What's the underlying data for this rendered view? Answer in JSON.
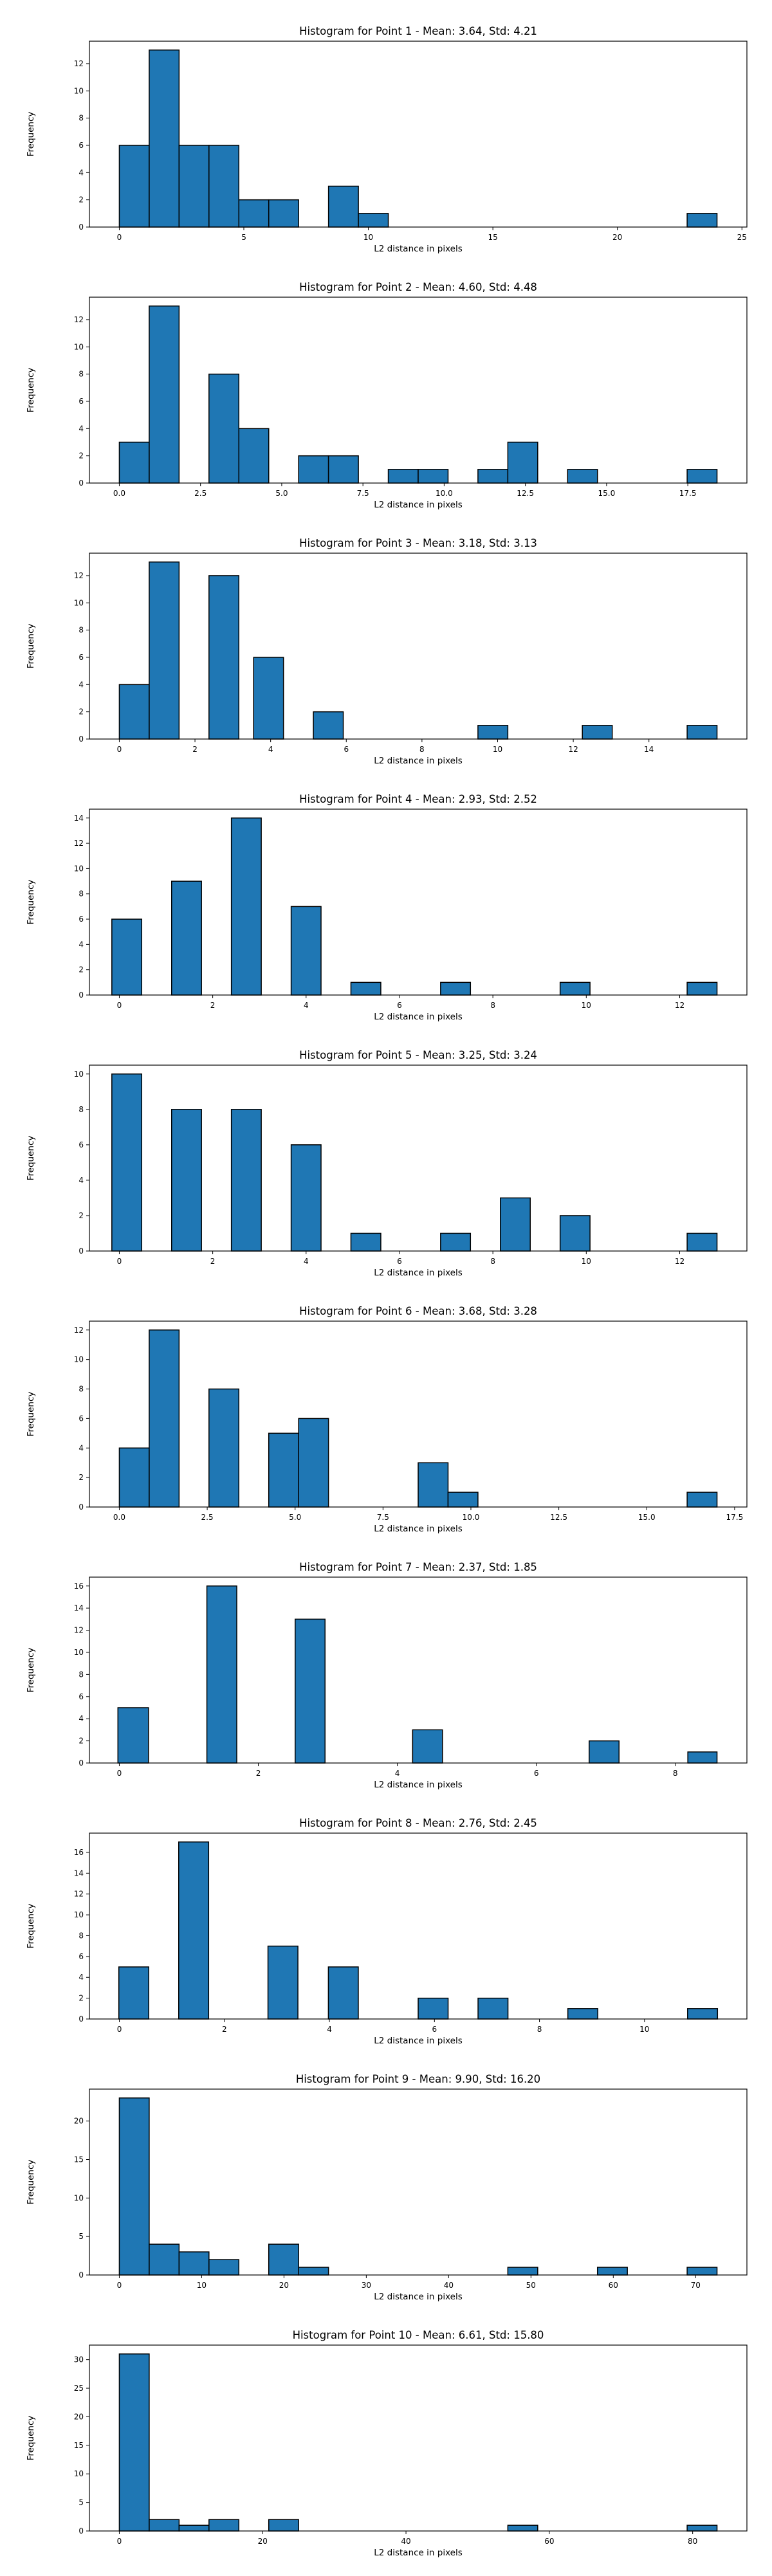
{
  "chart_data": [
    {
      "type": "bar",
      "title": "Histogram for Point 1 - Mean: 3.64, Std: 4.21",
      "xlabel": "L2 distance in pixels",
      "ylabel": "Frequency",
      "xlim": [
        -1.2,
        25.2
      ],
      "ylim": [
        0,
        13.65
      ],
      "xticks": [
        0,
        5,
        10,
        15,
        20,
        25
      ],
      "xtick_labels": [
        "0",
        "5",
        "10",
        "15",
        "20",
        "25"
      ],
      "yticks": [
        0,
        2,
        4,
        6,
        8,
        10,
        12
      ],
      "ytick_labels": [
        "0",
        "2",
        "4",
        "6",
        "8",
        "10",
        "12"
      ],
      "bars": [
        {
          "x0": 0.0,
          "x1": 1.2,
          "value": 6
        },
        {
          "x0": 1.2,
          "x1": 2.4,
          "value": 13
        },
        {
          "x0": 2.4,
          "x1": 3.6,
          "value": 6
        },
        {
          "x0": 3.6,
          "x1": 4.8,
          "value": 6
        },
        {
          "x0": 4.8,
          "x1": 6.0,
          "value": 2
        },
        {
          "x0": 6.0,
          "x1": 7.2,
          "value": 2
        },
        {
          "x0": 8.4,
          "x1": 9.6,
          "value": 3
        },
        {
          "x0": 9.6,
          "x1": 10.8,
          "value": 1
        },
        {
          "x0": 22.8,
          "x1": 24.0,
          "value": 1
        }
      ]
    },
    {
      "type": "bar",
      "title": "Histogram for Point 2 - Mean: 4.60, Std: 4.48",
      "xlabel": "L2 distance in pixels",
      "ylabel": "Frequency",
      "xlim": [
        -0.92,
        19.32
      ],
      "ylim": [
        0,
        13.65
      ],
      "xticks": [
        0,
        2.5,
        5,
        7.5,
        10,
        12.5,
        15,
        17.5
      ],
      "xtick_labels": [
        "0.0",
        "2.5",
        "5.0",
        "7.5",
        "10.0",
        "12.5",
        "15.0",
        "17.5"
      ],
      "yticks": [
        0,
        2,
        4,
        6,
        8,
        10,
        12
      ],
      "ytick_labels": [
        "0",
        "2",
        "4",
        "6",
        "8",
        "10",
        "12"
      ],
      "bars": [
        {
          "x0": 0.0,
          "x1": 0.92,
          "value": 3
        },
        {
          "x0": 0.92,
          "x1": 1.84,
          "value": 13
        },
        {
          "x0": 2.76,
          "x1": 3.68,
          "value": 8
        },
        {
          "x0": 3.68,
          "x1": 4.6,
          "value": 4
        },
        {
          "x0": 5.52,
          "x1": 6.44,
          "value": 2
        },
        {
          "x0": 6.44,
          "x1": 7.36,
          "value": 2
        },
        {
          "x0": 8.28,
          "x1": 9.2,
          "value": 1
        },
        {
          "x0": 9.2,
          "x1": 10.12,
          "value": 1
        },
        {
          "x0": 11.04,
          "x1": 11.96,
          "value": 1
        },
        {
          "x0": 11.96,
          "x1": 12.88,
          "value": 3
        },
        {
          "x0": 13.8,
          "x1": 14.72,
          "value": 1
        },
        {
          "x0": 17.48,
          "x1": 18.4,
          "value": 1
        }
      ]
    },
    {
      "type": "bar",
      "title": "Histogram for Point 3 - Mean: 3.18, Std: 3.13",
      "xlabel": "L2 distance in pixels",
      "ylabel": "Frequency",
      "xlim": [
        -0.79,
        16.59
      ],
      "ylim": [
        0,
        13.65
      ],
      "xticks": [
        0,
        2,
        4,
        6,
        8,
        10,
        12,
        14
      ],
      "xtick_labels": [
        "0",
        "2",
        "4",
        "6",
        "8",
        "10",
        "12",
        "14"
      ],
      "yticks": [
        0,
        2,
        4,
        6,
        8,
        10,
        12
      ],
      "ytick_labels": [
        "0",
        "2",
        "4",
        "6",
        "8",
        "10",
        "12"
      ],
      "bars": [
        {
          "x0": 0.0,
          "x1": 0.79,
          "value": 4
        },
        {
          "x0": 0.79,
          "x1": 1.58,
          "value": 13
        },
        {
          "x0": 2.37,
          "x1": 3.16,
          "value": 12
        },
        {
          "x0": 3.55,
          "x1": 4.34,
          "value": 6
        },
        {
          "x0": 5.13,
          "x1": 5.92,
          "value": 2
        },
        {
          "x0": 9.48,
          "x1": 10.27,
          "value": 1
        },
        {
          "x0": 12.24,
          "x1": 13.03,
          "value": 1
        },
        {
          "x0": 15.01,
          "x1": 15.8,
          "value": 1
        }
      ]
    },
    {
      "type": "bar",
      "title": "Histogram for Point 4 - Mean: 2.93, Std: 2.52",
      "xlabel": "L2 distance in pixels",
      "ylabel": "Frequency",
      "xlim": [
        -0.64,
        13.44
      ],
      "ylim": [
        0,
        14.7
      ],
      "xticks": [
        0,
        2,
        4,
        6,
        8,
        10,
        12
      ],
      "xtick_labels": [
        "0",
        "2",
        "4",
        "6",
        "8",
        "10",
        "12"
      ],
      "yticks": [
        0,
        2,
        4,
        6,
        8,
        10,
        12,
        14
      ],
      "ytick_labels": [
        "0",
        "2",
        "4",
        "6",
        "8",
        "10",
        "12",
        "14"
      ],
      "bars": [
        {
          "x0": -0.16,
          "x1": 0.48,
          "value": 6
        },
        {
          "x0": 1.12,
          "x1": 1.76,
          "value": 9
        },
        {
          "x0": 2.4,
          "x1": 3.04,
          "value": 14
        },
        {
          "x0": 3.68,
          "x1": 4.32,
          "value": 7
        },
        {
          "x0": 4.96,
          "x1": 5.6,
          "value": 1
        },
        {
          "x0": 6.88,
          "x1": 7.52,
          "value": 1
        },
        {
          "x0": 9.44,
          "x1": 10.08,
          "value": 1
        },
        {
          "x0": 12.16,
          "x1": 12.8,
          "value": 1
        }
      ]
    },
    {
      "type": "bar",
      "title": "Histogram for Point 5 - Mean: 3.25, Std: 3.24",
      "xlabel": "L2 distance in pixels",
      "ylabel": "Frequency",
      "xlim": [
        -0.64,
        13.44
      ],
      "ylim": [
        0,
        10.5
      ],
      "xticks": [
        0,
        2,
        4,
        6,
        8,
        10,
        12
      ],
      "xtick_labels": [
        "0",
        "2",
        "4",
        "6",
        "8",
        "10",
        "12"
      ],
      "yticks": [
        0,
        2,
        4,
        6,
        8,
        10
      ],
      "ytick_labels": [
        "0",
        "2",
        "4",
        "6",
        "8",
        "10"
      ],
      "bars": [
        {
          "x0": -0.16,
          "x1": 0.48,
          "value": 10
        },
        {
          "x0": 1.12,
          "x1": 1.76,
          "value": 8
        },
        {
          "x0": 2.4,
          "x1": 3.04,
          "value": 8
        },
        {
          "x0": 3.68,
          "x1": 4.32,
          "value": 6
        },
        {
          "x0": 4.96,
          "x1": 5.6,
          "value": 1
        },
        {
          "x0": 6.88,
          "x1": 7.52,
          "value": 1
        },
        {
          "x0": 8.16,
          "x1": 8.8,
          "value": 3
        },
        {
          "x0": 9.44,
          "x1": 10.08,
          "value": 2
        },
        {
          "x0": 12.16,
          "x1": 12.8,
          "value": 1
        }
      ]
    },
    {
      "type": "bar",
      "title": "Histogram for Point 6 - Mean: 3.68, Std: 3.28",
      "xlabel": "L2 distance in pixels",
      "ylabel": "Frequency",
      "xlim": [
        -0.85,
        17.85
      ],
      "ylim": [
        0,
        12.6
      ],
      "xticks": [
        0,
        2.5,
        5,
        7.5,
        10,
        12.5,
        15,
        17.5
      ],
      "xtick_labels": [
        "0.0",
        "2.5",
        "5.0",
        "7.5",
        "10.0",
        "12.5",
        "15.0",
        "17.5"
      ],
      "yticks": [
        0,
        2,
        4,
        6,
        8,
        10,
        12
      ],
      "ytick_labels": [
        "0",
        "2",
        "4",
        "6",
        "8",
        "10",
        "12"
      ],
      "bars": [
        {
          "x0": 0.0,
          "x1": 0.85,
          "value": 4
        },
        {
          "x0": 0.85,
          "x1": 1.7,
          "value": 12
        },
        {
          "x0": 2.55,
          "x1": 3.4,
          "value": 8
        },
        {
          "x0": 4.25,
          "x1": 5.1,
          "value": 5
        },
        {
          "x0": 5.1,
          "x1": 5.95,
          "value": 6
        },
        {
          "x0": 8.5,
          "x1": 9.35,
          "value": 3
        },
        {
          "x0": 9.35,
          "x1": 10.2,
          "value": 1
        },
        {
          "x0": 16.15,
          "x1": 17.0,
          "value": 1
        }
      ]
    },
    {
      "type": "bar",
      "title": "Histogram for Point 7 - Mean: 2.37, Std: 1.85",
      "xlabel": "L2 distance in pixels",
      "ylabel": "Frequency",
      "xlim": [
        -0.43,
        9.03
      ],
      "ylim": [
        0,
        16.8
      ],
      "xticks": [
        0,
        2,
        4,
        6,
        8
      ],
      "xtick_labels": [
        "0",
        "2",
        "4",
        "6",
        "8"
      ],
      "yticks": [
        0,
        2,
        4,
        6,
        8,
        10,
        12,
        14,
        16
      ],
      "ytick_labels": [
        "0",
        "2",
        "4",
        "6",
        "8",
        "10",
        "12",
        "14",
        "16"
      ],
      "bars": [
        {
          "x0": -0.02,
          "x1": 0.42,
          "value": 5
        },
        {
          "x0": 1.26,
          "x1": 1.69,
          "value": 16
        },
        {
          "x0": 2.53,
          "x1": 2.96,
          "value": 13
        },
        {
          "x0": 4.22,
          "x1": 4.65,
          "value": 3
        },
        {
          "x0": 6.76,
          "x1": 7.19,
          "value": 2
        },
        {
          "x0": 8.18,
          "x1": 8.6,
          "value": 1
        }
      ]
    },
    {
      "type": "bar",
      "title": "Histogram for Point 8 - Mean: 2.76, Std: 2.45",
      "xlabel": "L2 distance in pixels",
      "ylabel": "Frequency",
      "xlim": [
        -0.57,
        11.95
      ],
      "ylim": [
        0,
        17.85
      ],
      "xticks": [
        0,
        2,
        4,
        6,
        8,
        10
      ],
      "xtick_labels": [
        "0",
        "2",
        "4",
        "6",
        "8",
        "10"
      ],
      "yticks": [
        0,
        2,
        4,
        6,
        8,
        10,
        12,
        14,
        16
      ],
      "ytick_labels": [
        "0",
        "2",
        "4",
        "6",
        "8",
        "10",
        "12",
        "14",
        "16"
      ],
      "bars": [
        {
          "x0": -0.01,
          "x1": 0.56,
          "value": 5
        },
        {
          "x0": 1.13,
          "x1": 1.7,
          "value": 17
        },
        {
          "x0": 2.83,
          "x1": 3.4,
          "value": 7
        },
        {
          "x0": 3.98,
          "x1": 4.55,
          "value": 5
        },
        {
          "x0": 5.69,
          "x1": 6.26,
          "value": 2
        },
        {
          "x0": 6.83,
          "x1": 7.4,
          "value": 2
        },
        {
          "x0": 8.54,
          "x1": 9.11,
          "value": 1
        },
        {
          "x0": 10.82,
          "x1": 11.39,
          "value": 1
        }
      ]
    },
    {
      "type": "bar",
      "title": "Histogram for Point 9 - Mean: 9.90, Std: 16.20",
      "xlabel": "L2 distance in pixels",
      "ylabel": "Frequency",
      "xlim": [
        -3.63,
        76.23
      ],
      "ylim": [
        0,
        24.15
      ],
      "xticks": [
        0,
        10,
        20,
        30,
        40,
        50,
        60,
        70
      ],
      "xtick_labels": [
        "0",
        "10",
        "20",
        "30",
        "40",
        "50",
        "60",
        "70"
      ],
      "yticks": [
        0,
        5,
        10,
        15,
        20
      ],
      "ytick_labels": [
        "0",
        "5",
        "10",
        "15",
        "20"
      ],
      "bars": [
        {
          "x0": 0.0,
          "x1": 3.63,
          "value": 23
        },
        {
          "x0": 3.63,
          "x1": 7.26,
          "value": 4
        },
        {
          "x0": 7.26,
          "x1": 10.89,
          "value": 3
        },
        {
          "x0": 10.89,
          "x1": 14.52,
          "value": 2
        },
        {
          "x0": 18.15,
          "x1": 21.78,
          "value": 4
        },
        {
          "x0": 21.78,
          "x1": 25.41,
          "value": 1
        },
        {
          "x0": 47.19,
          "x1": 50.82,
          "value": 1
        },
        {
          "x0": 58.08,
          "x1": 61.71,
          "value": 1
        },
        {
          "x0": 68.97,
          "x1": 72.6,
          "value": 1
        }
      ]
    },
    {
      "type": "bar",
      "title": "Histogram for Point 10 - Mean: 6.61, Std: 15.80",
      "xlabel": "L2 distance in pixels",
      "ylabel": "Frequency",
      "xlim": [
        -4.17,
        87.57
      ],
      "ylim": [
        0,
        32.55
      ],
      "xticks": [
        0,
        20,
        40,
        60,
        80
      ],
      "xtick_labels": [
        "0",
        "20",
        "40",
        "60",
        "80"
      ],
      "yticks": [
        0,
        5,
        10,
        15,
        20,
        25,
        30
      ],
      "ytick_labels": [
        "0",
        "5",
        "10",
        "15",
        "20",
        "25",
        "30"
      ],
      "bars": [
        {
          "x0": 0.0,
          "x1": 4.17,
          "value": 31
        },
        {
          "x0": 4.17,
          "x1": 8.34,
          "value": 2
        },
        {
          "x0": 8.34,
          "x1": 12.51,
          "value": 1
        },
        {
          "x0": 12.51,
          "x1": 16.68,
          "value": 2
        },
        {
          "x0": 20.85,
          "x1": 25.02,
          "value": 2
        },
        {
          "x0": 54.21,
          "x1": 58.38,
          "value": 1
        },
        {
          "x0": 79.23,
          "x1": 83.4,
          "value": 1
        }
      ]
    }
  ],
  "colors": {
    "bar_fill": "#1f77b4",
    "bar_edge": "#000000",
    "axes": "#000000",
    "background": "#ffffff"
  }
}
